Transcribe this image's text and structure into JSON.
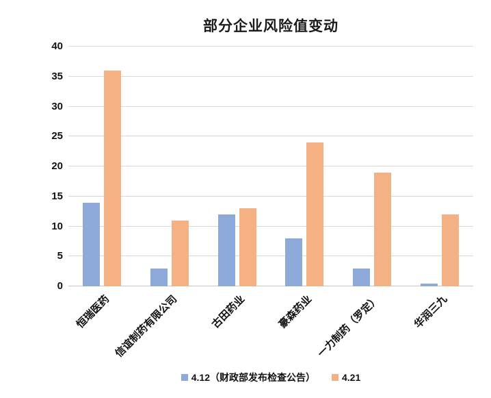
{
  "title": "部分企业风险值变动",
  "chart_data": {
    "type": "bar",
    "title": "部分企业风险值变动",
    "categories": [
      "恒瑞医药",
      "信谊制药有限公司",
      "古田药业",
      "豪森药业",
      "一力制药（罗定）",
      "华润三九"
    ],
    "series": [
      {
        "name": "4.12（财政部发布检查公告）",
        "color": "#8EAADB",
        "values": [
          14,
          3,
          12,
          8,
          3,
          0.5
        ]
      },
      {
        "name": "4.21",
        "color": "#F4B183",
        "values": [
          36,
          11,
          13,
          24,
          19,
          12
        ]
      }
    ],
    "xlabel": "",
    "ylabel": "",
    "ylim": [
      0,
      40
    ],
    "yticks": [
      0,
      5,
      10,
      15,
      20,
      25,
      30,
      35,
      40
    ],
    "grid": true,
    "gridline_color": "#d9d9d9",
    "legend_position": "bottom",
    "x_label_rotation_deg": 45
  }
}
